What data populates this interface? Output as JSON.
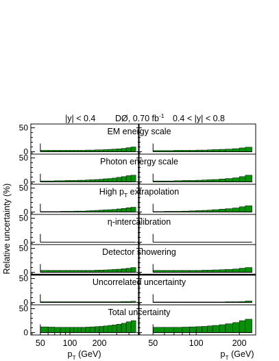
{
  "header": {
    "left_range": "|y| < 0.4",
    "experiment": "DØ, 0.70 fb",
    "lumi_sup": "-1",
    "right_range": "0.4 < |y| < 0.8"
  },
  "y_axis_label": "Relative uncertainty (%)",
  "x_axis_label": {
    "prefix": "p",
    "sub": "T",
    "suffix": " (GeV)"
  },
  "colors": {
    "fill": "#0a8f0a",
    "edge": "#000000",
    "frame": "#000000",
    "background": "#ffffff"
  },
  "chart_data": {
    "type": "area",
    "ylim": [
      -5,
      58
    ],
    "y_ticks": [
      0,
      50
    ],
    "x_scale": "log",
    "xlim_left": [
      40,
      500
    ],
    "xlim_right": [
      40,
      260
    ],
    "x_ticks_left": [
      50,
      100,
      200
    ],
    "x_ticks_right": [
      50,
      100,
      200
    ],
    "bin_edges_left": [
      50,
      60,
      70,
      80,
      90,
      100,
      110,
      120,
      130,
      145,
      160,
      180,
      200,
      220,
      245,
      270,
      300,
      335,
      375,
      420,
      470
    ],
    "bin_edges_right": [
      50,
      60,
      70,
      80,
      90,
      100,
      110,
      120,
      130,
      145,
      160,
      180,
      200,
      220,
      245
    ],
    "panels": [
      {
        "title": "EM energy scale",
        "left": [
          3,
          3,
          3,
          3,
          3,
          3,
          3,
          3,
          3,
          3.5,
          3.5,
          4,
          4,
          4.5,
          5,
          5.5,
          6,
          7,
          8.5,
          10
        ],
        "right": [
          2.5,
          2.5,
          3,
          3,
          3,
          3.5,
          3.5,
          4,
          4.5,
          5,
          5.5,
          6.5,
          8,
          9.5
        ]
      },
      {
        "title": "Photon energy scale",
        "title_sub": "",
        "left": [
          2,
          2,
          2.5,
          2.5,
          3,
          3,
          3,
          3.5,
          3.5,
          4,
          4.5,
          5,
          5.5,
          6.5,
          7,
          8,
          9.5,
          11,
          13,
          14
        ],
        "right": [
          2,
          2,
          2.5,
          3,
          3,
          3.5,
          4,
          4.5,
          5,
          6,
          7,
          8.5,
          11,
          14
        ]
      },
      {
        "title": "High p",
        "title_sub": "T",
        "title_suffix": " extrapolation",
        "left": [
          1,
          1,
          1,
          1.5,
          1.5,
          1.5,
          2,
          2,
          2,
          2.5,
          3,
          3.5,
          4,
          4.5,
          5,
          5.5,
          6.5,
          7.5,
          9,
          10
        ],
        "right": [
          1,
          1.5,
          1.5,
          2,
          2.5,
          3,
          3.5,
          4,
          5,
          6,
          7,
          8.5,
          11,
          13
        ]
      },
      {
        "title": "η-intercalibration",
        "left": [
          0,
          0,
          0,
          0,
          0,
          0,
          0,
          0,
          0,
          0,
          0,
          0,
          0,
          0,
          0,
          0,
          0,
          0,
          0,
          0
        ],
        "right": [
          0,
          0,
          0,
          0,
          0,
          0,
          0,
          0,
          0,
          0,
          0,
          0,
          0,
          0
        ]
      },
      {
        "title": "Detector showering",
        "left": [
          4,
          4,
          4,
          4,
          4,
          4,
          4,
          4,
          4,
          4,
          4,
          4.5,
          4.5,
          5,
          5.5,
          6,
          6.5,
          7.5,
          8.5,
          10
        ],
        "right": [
          4,
          4,
          4,
          4,
          4,
          4,
          4.5,
          4.5,
          5,
          5.5,
          6,
          7,
          8.5,
          10
        ]
      },
      {
        "title": "Uncorrelated uncertainty",
        "left": [
          1.5,
          1.5,
          1.5,
          1.5,
          1.5,
          1.5,
          1.5,
          1.5,
          1.5,
          1.5,
          1.5,
          1.5,
          1.5,
          1.5,
          1.5,
          1.5,
          1.5,
          2,
          2,
          2.5
        ],
        "right": [
          1,
          1,
          1,
          1,
          1,
          1,
          1,
          1,
          1,
          1,
          1.5,
          1.5,
          2,
          3
        ]
      },
      {
        "title": "Total uncertainty",
        "left": [
          12,
          11.5,
          11,
          11,
          11,
          11,
          11,
          11,
          11,
          11.5,
          12,
          12.5,
          13,
          14,
          15,
          16,
          17.5,
          19.5,
          22.5,
          25
        ],
        "right": [
          11,
          11,
          11,
          11.5,
          12,
          12.5,
          13,
          14,
          15,
          16.5,
          18.5,
          21,
          25,
          28
        ]
      }
    ]
  }
}
